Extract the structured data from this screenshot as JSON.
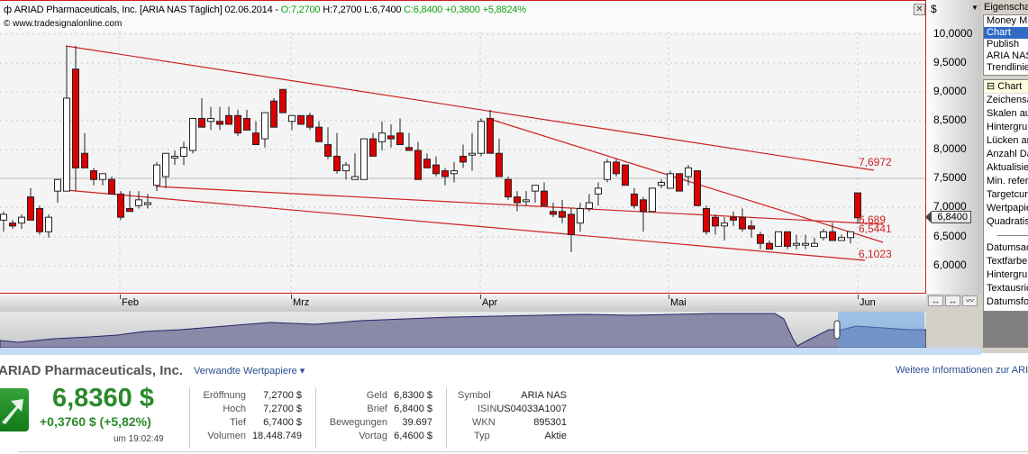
{
  "chart": {
    "title_prefix": "ARIAD Pharmaceuticals, Inc. [ARIA NAS  Täglich] 02.06.2014 - ",
    "ohlc_open": "O:7,2700",
    "ohlc_high": " H:7,2700",
    "ohlc_low": " L:6,7400",
    "ohlc_close": " C:6,8400 +0,3800 +5,8824%",
    "source": "© www.tradesignalonline.com",
    "close_icon": "✕",
    "y_unit": "$",
    "y_dropdown": "▼",
    "y_ticks": [
      "10,0000",
      "9,5000",
      "9,0000",
      "8,5000",
      "8,0000",
      "7,5000",
      "7,0000",
      "6,5000",
      "6,0000"
    ],
    "current_price_tag": "6,8400",
    "x_ticks": [
      "Feb",
      "Mrz",
      "Apr",
      "Mai",
      "Jun"
    ],
    "trendline_labels": [
      "7,6972",
      "6,689",
      "6,5441",
      "6,1023"
    ],
    "nav_buttons": [
      "↔",
      "↔",
      "〰"
    ],
    "colors": {
      "down": "#dd0000",
      "up": "#ffffff",
      "trend": "#cc2222",
      "border": "#cc2222"
    }
  },
  "chart_data": {
    "type": "candlestick",
    "title": "ARIAD Pharmaceuticals, Inc. [ARIA NAS Täglich] 02.06.2014",
    "ylabel": "$",
    "ylim": [
      5.7,
      10.3
    ],
    "x_ticks": [
      "Feb",
      "Mrz",
      "Apr",
      "Mai",
      "Jun"
    ],
    "last": {
      "open": 7.27,
      "high": 7.27,
      "low": 6.74,
      "close": 6.84,
      "change": 0.38,
      "change_pct": 5.8824
    },
    "trendlines": [
      {
        "label": "7,6972",
        "value": 7.6972
      },
      {
        "label": "6,689",
        "value": 6.689
      },
      {
        "label": "6,5441",
        "value": 6.5441
      },
      {
        "label": "6,1023",
        "value": 6.1023
      }
    ]
  },
  "props": {
    "title": "Eigenschaften",
    "list": [
      "Money Management",
      "Chart",
      "Publish",
      "ARIA NAS",
      "Trendlinie"
    ],
    "selected": 1,
    "grid_header": "⊟ Chart",
    "grid_items": [
      "Zeichensatz",
      "Skalen automatisch",
      "Hintergrund",
      "Lücken anzeigen",
      "Anzahl Daten",
      "Aktualisieren",
      "Min. referenz",
      "Targetcursor",
      "Wertpapier",
      "Quadratisch"
    ],
    "grid_items2": [
      "Datumsachse",
      "Textfarbe",
      "Hintergrund",
      "Textausrichtung",
      "Datumsformat"
    ]
  },
  "quote": {
    "company": "ARIAD Pharmaceuticals, Inc.",
    "related": "Verwandte Wertpapiere ▾",
    "more_info": "Weitere Informationen zur ARIAD",
    "price": "6,8360 $",
    "change": "+0,3760 $ (+5,82%)",
    "time": "um 19:02:49",
    "col1": [
      {
        "label": "Eröffnung",
        "value": "7,2700 $"
      },
      {
        "label": "Hoch",
        "value": "7,2700 $"
      },
      {
        "label": "Tief",
        "value": "6,7400 $"
      },
      {
        "label": "Volumen",
        "value": "18.448.749"
      }
    ],
    "col2": [
      {
        "label": "Geld",
        "value": "6,8300 $"
      },
      {
        "label": "Brief",
        "value": "6,8400 $"
      },
      {
        "label": "Bewegungen",
        "value": "39.697"
      },
      {
        "label": "Vortag",
        "value": "6,4600 $"
      }
    ],
    "col3": [
      {
        "label": "Symbol",
        "value": "ARIA NAS"
      },
      {
        "label": "ISIN",
        "value": "US04033A1007"
      },
      {
        "label": "WKN",
        "value": "895301"
      },
      {
        "label": "Typ",
        "value": "Aktie"
      }
    ]
  }
}
